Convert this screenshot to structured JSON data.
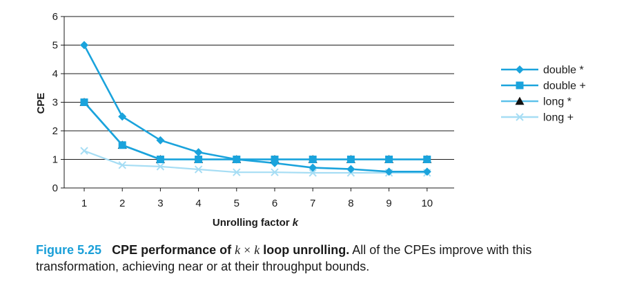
{
  "chart_data": {
    "type": "line",
    "xlabel": "Unrolling factor",
    "xlabel_var": "k",
    "ylabel": "CPE",
    "x": [
      1,
      2,
      3,
      4,
      5,
      6,
      7,
      8,
      9,
      10
    ],
    "xticks": [
      "1",
      "2",
      "3",
      "4",
      "5",
      "6",
      "7",
      "8",
      "9",
      "10"
    ],
    "ylim": [
      0,
      6
    ],
    "yticks": [
      "0",
      "1",
      "2",
      "3",
      "4",
      "5",
      "6"
    ],
    "grid": "horizontal",
    "legend_position": "right",
    "series": [
      {
        "name": "double *",
        "marker": "diamond",
        "color": "#1aa3dc",
        "values": [
          5.0,
          2.5,
          1.67,
          1.25,
          1.0,
          0.87,
          0.71,
          0.66,
          0.57,
          0.57
        ]
      },
      {
        "name": "double +",
        "marker": "square",
        "color": "#1aa3dc",
        "values": [
          3.0,
          1.5,
          1.0,
          1.0,
          1.0,
          1.0,
          1.0,
          1.0,
          1.0,
          1.0
        ]
      },
      {
        "name": "long *",
        "marker": "triangle",
        "color": "#5dc1ea",
        "values": [
          3.0,
          1.5,
          1.0,
          1.0,
          1.0,
          1.0,
          1.0,
          1.0,
          1.0,
          1.0
        ]
      },
      {
        "name": "long +",
        "marker": "x",
        "color": "#a6ddf4",
        "values": [
          1.3,
          0.8,
          0.75,
          0.65,
          0.55,
          0.55,
          0.53,
          0.53,
          0.53,
          0.53
        ]
      }
    ]
  },
  "caption": {
    "figure_label": "Figure 5.25",
    "title_before": "CPE performance of ",
    "math_k1": "k",
    "times": "×",
    "math_k2": "k",
    "title_after": " loop unrolling.",
    "body": " All of the CPEs improve with this transformation, achieving near or at their throughput bounds."
  }
}
